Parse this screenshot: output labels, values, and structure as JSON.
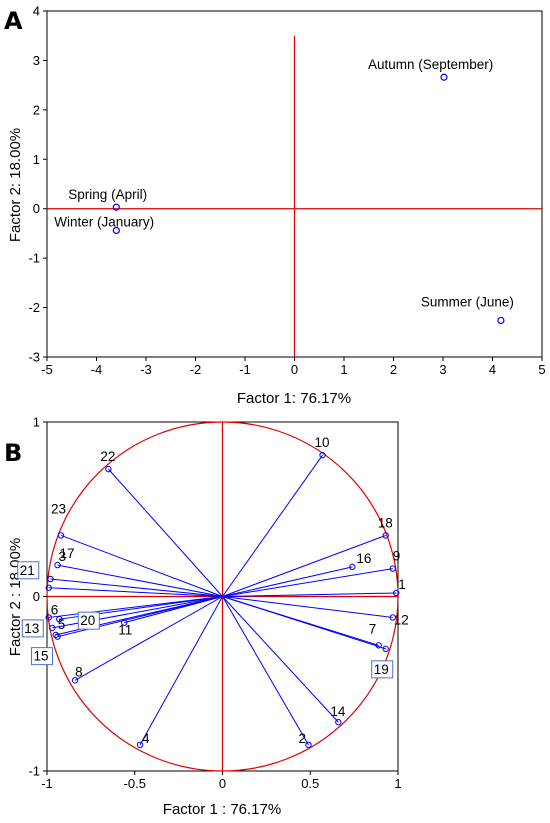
{
  "chart_data": [
    {
      "panel": "A",
      "type": "scatter",
      "xlabel": "Factor 1: 76.17%",
      "ylabel": "Factor 2: 18.00%",
      "xlim": [
        -5,
        5
      ],
      "ylim": [
        -3,
        4
      ],
      "xticks": [
        -5,
        -4,
        -3,
        -2,
        -1,
        0,
        1,
        2,
        3,
        4,
        5
      ],
      "yticks": [
        -3,
        -2,
        -1,
        0,
        1,
        2,
        3,
        4
      ],
      "grid": false,
      "colors": {
        "points": "#0000ff",
        "reference_lines": "#e00000",
        "frame": "#000000"
      },
      "points": [
        {
          "label": "Spring (April)",
          "x": -3.6,
          "y": 0.03
        },
        {
          "label": "Winter (January)",
          "x": -3.6,
          "y": -0.44
        },
        {
          "label": "Autumn (September)",
          "x": 3.02,
          "y": 2.66
        },
        {
          "label": "Summer (June)",
          "x": 4.17,
          "y": -2.26
        }
      ]
    },
    {
      "panel": "B",
      "type": "scatter",
      "subtype": "correlation-circle",
      "xlabel": "Factor 1 : 76.17%",
      "ylabel": "Factor 2 : 18.00%",
      "xlim": [
        -1,
        1
      ],
      "ylim": [
        -1,
        1
      ],
      "xticks": [
        -1,
        -0.5,
        0,
        0.5,
        1
      ],
      "yticks": [
        -1,
        0,
        1
      ],
      "grid": false,
      "colors": {
        "vectors": "#0000ff",
        "circle": "#e00000",
        "boxes": "#4a6fd6"
      },
      "vectors": [
        {
          "label": "1",
          "x": 0.99,
          "y": 0.02
        },
        {
          "label": "2",
          "x": 0.49,
          "y": -0.85
        },
        {
          "label": "3",
          "x": -0.98,
          "y": 0.1
        },
        {
          "label": "4",
          "x": -0.47,
          "y": -0.85
        },
        {
          "label": "5",
          "x": -0.95,
          "y": -0.22
        },
        {
          "label": "6",
          "x": -0.99,
          "y": -0.12
        },
        {
          "label": "7",
          "x": 0.89,
          "y": -0.28
        },
        {
          "label": "8",
          "x": -0.84,
          "y": -0.48
        },
        {
          "label": "9",
          "x": 0.97,
          "y": 0.16
        },
        {
          "label": "10",
          "x": 0.57,
          "y": 0.81
        },
        {
          "label": "11",
          "x": -0.56,
          "y": -0.15
        },
        {
          "label": "12",
          "x": 0.97,
          "y": -0.12
        },
        {
          "label": "13",
          "x": -0.97,
          "y": -0.18
        },
        {
          "label": "14",
          "x": 0.66,
          "y": -0.72
        },
        {
          "label": "15",
          "x": -0.94,
          "y": -0.23
        },
        {
          "label": "16",
          "x": 0.74,
          "y": 0.17
        },
        {
          "label": "17",
          "x": -0.94,
          "y": 0.18
        },
        {
          "label": "18",
          "x": 0.93,
          "y": 0.35
        },
        {
          "label": "19",
          "x": 0.93,
          "y": -0.3
        },
        {
          "label": "20",
          "x": -0.93,
          "y": -0.13
        },
        {
          "label": "21",
          "x": -0.99,
          "y": 0.05
        },
        {
          "label": "22",
          "x": -0.65,
          "y": 0.73
        },
        {
          "label": "23",
          "x": -0.92,
          "y": 0.35
        }
      ]
    }
  ],
  "panel_a": {
    "letter": "A",
    "xlabel": "Factor 1: 76.17%",
    "ylabel": "Factor 2: 18.00%"
  },
  "panel_b": {
    "letter": "B",
    "xlabel": "Factor 1 : 76.17%",
    "ylabel": "Factor 2 : 18.00%"
  }
}
